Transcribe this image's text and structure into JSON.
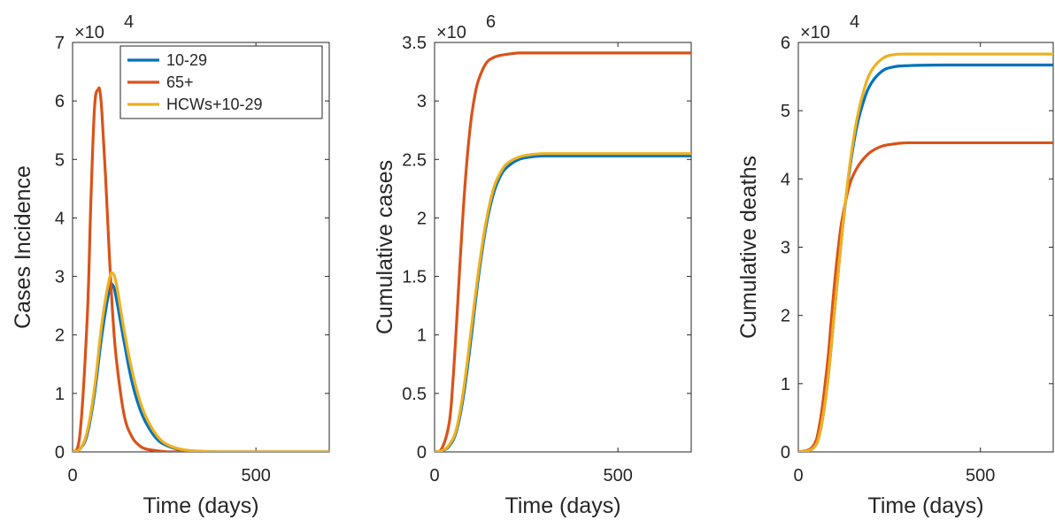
{
  "series_styles": [
    {
      "name": "10-29",
      "color": "#0072BD"
    },
    {
      "name": "65+",
      "color": "#D95319"
    },
    {
      "name": "HCWs+10-29",
      "color": "#EDB120"
    }
  ],
  "chart_data": [
    {
      "type": "line",
      "xlabel": "Time (days)",
      "ylabel": "Cases Incidence",
      "exponent_label": "×10",
      "exponent_power": "4",
      "xlim": [
        0,
        700
      ],
      "ylim": [
        0,
        7
      ],
      "xticks": [
        0,
        500
      ],
      "xtick_labels": [
        "0",
        "500"
      ],
      "yticks": [
        0,
        1,
        2,
        3,
        4,
        5,
        6,
        7
      ],
      "ytick_labels": [
        "0",
        "1",
        "2",
        "3",
        "4",
        "5",
        "6",
        "7"
      ],
      "legend": {
        "position": "top-right",
        "entries": [
          "10-29",
          "65+",
          "HCWs+10-29"
        ]
      },
      "series": [
        {
          "name": "10-29",
          "x": [
            0,
            20,
            40,
            60,
            80,
            100,
            110,
            120,
            140,
            160,
            180,
            200,
            230,
            260,
            300,
            350,
            400,
            500,
            700
          ],
          "values": [
            0.0,
            0.05,
            0.3,
            1.0,
            2.0,
            2.75,
            2.85,
            2.6,
            1.9,
            1.25,
            0.8,
            0.5,
            0.22,
            0.1,
            0.03,
            0.01,
            0.0,
            0.0,
            0.0
          ]
        },
        {
          "name": "65+",
          "x": [
            0,
            20,
            40,
            50,
            60,
            70,
            75,
            80,
            90,
            100,
            110,
            120,
            140,
            160,
            180,
            200,
            230,
            260,
            300,
            400,
            700
          ],
          "values": [
            0.0,
            0.3,
            2.3,
            4.3,
            5.9,
            6.2,
            6.15,
            5.8,
            4.7,
            3.4,
            2.3,
            1.55,
            0.65,
            0.28,
            0.12,
            0.05,
            0.02,
            0.0,
            0.0,
            0.0,
            0.0
          ]
        },
        {
          "name": "HCWs+10-29",
          "x": [
            0,
            20,
            40,
            60,
            80,
            100,
            110,
            120,
            140,
            160,
            180,
            200,
            230,
            260,
            300,
            350,
            400,
            500,
            700
          ],
          "values": [
            0.0,
            0.05,
            0.35,
            1.1,
            2.2,
            2.95,
            3.05,
            2.85,
            2.1,
            1.45,
            0.95,
            0.6,
            0.28,
            0.12,
            0.04,
            0.01,
            0.0,
            0.0,
            0.0
          ]
        }
      ]
    },
    {
      "type": "line",
      "xlabel": "Time (days)",
      "ylabel": "Cumulative cases",
      "exponent_label": "×10",
      "exponent_power": "6",
      "xlim": [
        0,
        700
      ],
      "ylim": [
        0,
        3.5
      ],
      "xticks": [
        0,
        500
      ],
      "xtick_labels": [
        "0",
        "500"
      ],
      "yticks": [
        0,
        0.5,
        1,
        1.5,
        2,
        2.5,
        3,
        3.5
      ],
      "ytick_labels": [
        "0",
        "0.5",
        "1",
        "1.5",
        "2",
        "2.5",
        "3",
        "3.5"
      ],
      "series": [
        {
          "name": "10-29",
          "x": [
            0,
            20,
            40,
            60,
            80,
            100,
            120,
            140,
            160,
            180,
            200,
            230,
            260,
            300,
            400,
            700
          ],
          "values": [
            0.0,
            0.01,
            0.05,
            0.18,
            0.5,
            0.98,
            1.5,
            1.92,
            2.2,
            2.36,
            2.44,
            2.5,
            2.52,
            2.53,
            2.53,
            2.53
          ]
        },
        {
          "name": "65+",
          "x": [
            0,
            20,
            40,
            50,
            60,
            70,
            80,
            90,
            100,
            110,
            120,
            140,
            160,
            180,
            200,
            230,
            260,
            300,
            400,
            700
          ],
          "values": [
            0.0,
            0.03,
            0.25,
            0.6,
            1.1,
            1.65,
            2.15,
            2.55,
            2.85,
            3.05,
            3.18,
            3.32,
            3.37,
            3.39,
            3.4,
            3.41,
            3.41,
            3.41,
            3.41,
            3.41
          ]
        },
        {
          "name": "HCWs+10-29",
          "x": [
            0,
            20,
            40,
            60,
            80,
            100,
            120,
            140,
            160,
            180,
            200,
            230,
            260,
            300,
            400,
            700
          ],
          "values": [
            0.0,
            0.01,
            0.06,
            0.2,
            0.55,
            1.05,
            1.55,
            1.96,
            2.24,
            2.39,
            2.47,
            2.52,
            2.54,
            2.55,
            2.55,
            2.55
          ]
        }
      ]
    },
    {
      "type": "line",
      "xlabel": "Time (days)",
      "ylabel": "Cumulative deaths",
      "exponent_label": "×10",
      "exponent_power": "4",
      "xlim": [
        0,
        700
      ],
      "ylim": [
        0,
        6
      ],
      "xticks": [
        0,
        500
      ],
      "xtick_labels": [
        "0",
        "500"
      ],
      "yticks": [
        0,
        1,
        2,
        3,
        4,
        5,
        6
      ],
      "ytick_labels": [
        "0",
        "1",
        "2",
        "3",
        "4",
        "5",
        "6"
      ],
      "series": [
        {
          "name": "10-29",
          "x": [
            0,
            40,
            60,
            80,
            100,
            120,
            140,
            160,
            180,
            200,
            230,
            260,
            300,
            400,
            700
          ],
          "values": [
            0.0,
            0.05,
            0.3,
            1.0,
            2.1,
            3.2,
            4.1,
            4.75,
            5.15,
            5.4,
            5.58,
            5.64,
            5.66,
            5.67,
            5.67
          ]
        },
        {
          "name": "65+",
          "x": [
            0,
            40,
            60,
            80,
            90,
            100,
            110,
            120,
            140,
            160,
            180,
            200,
            230,
            260,
            300,
            400,
            700
          ],
          "values": [
            0.0,
            0.08,
            0.45,
            1.3,
            1.9,
            2.5,
            3.0,
            3.4,
            3.9,
            4.15,
            4.3,
            4.4,
            4.48,
            4.51,
            4.53,
            4.53,
            4.53
          ]
        },
        {
          "name": "HCWs+10-29",
          "x": [
            0,
            40,
            60,
            80,
            100,
            120,
            140,
            160,
            180,
            200,
            230,
            260,
            300,
            400,
            700
          ],
          "values": [
            0.0,
            0.05,
            0.3,
            1.0,
            2.1,
            3.2,
            4.15,
            4.85,
            5.3,
            5.58,
            5.76,
            5.82,
            5.83,
            5.83,
            5.83
          ]
        }
      ]
    }
  ]
}
